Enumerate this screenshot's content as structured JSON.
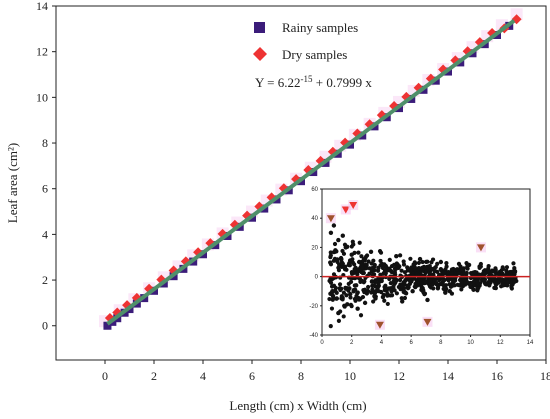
{
  "chart_data": [
    {
      "type": "scatter",
      "xlabel": "Length (cm) x Width (cm)",
      "ylabel": "Leaf area (cm²)",
      "xlim": [
        -2,
        18
      ],
      "ylim": [
        -1.5,
        14
      ],
      "xticks": [
        "0",
        "2",
        "4",
        "6",
        "8",
        "10",
        "12",
        "14",
        "16",
        "18"
      ],
      "yticks": [
        "0",
        "2",
        "4",
        "6",
        "8",
        "10",
        "12",
        "14"
      ],
      "legend": {
        "placement": "top-center"
      },
      "equation": {
        "prefix": "Y = 6.22",
        "exponent": "-15",
        "suffix": " + 0.7999 x"
      },
      "regression": {
        "intercept": 0,
        "slope": 0.7999,
        "color": "#4f8f6a"
      },
      "series": [
        {
          "name": "Rainy samples",
          "color": "#3b1c7a",
          "marker": "square",
          "x": [
            0.1,
            0.3,
            0.5,
            0.8,
            1.0,
            1.3,
            1.6,
            2.0,
            2.4,
            2.8,
            3.2,
            3.6,
            4.0,
            4.5,
            5.0,
            5.5,
            6.0,
            6.5,
            7.0,
            7.5,
            8.0,
            8.5,
            9.0,
            9.5,
            10.0,
            10.5,
            11.0,
            11.5,
            12.0,
            12.5,
            13.0,
            13.5,
            14.0,
            14.5,
            15.0,
            15.5,
            16.0,
            16.5
          ],
          "y": [
            0.0,
            0.17,
            0.33,
            0.57,
            0.73,
            0.97,
            1.21,
            1.53,
            1.85,
            2.17,
            2.49,
            2.81,
            3.13,
            3.53,
            3.93,
            4.33,
            4.73,
            5.13,
            5.53,
            5.93,
            6.33,
            6.73,
            7.13,
            7.53,
            7.93,
            8.33,
            8.73,
            9.13,
            9.53,
            9.93,
            10.33,
            10.73,
            11.13,
            11.53,
            11.93,
            12.33,
            12.73,
            13.13
          ]
        },
        {
          "name": "Dry samples",
          "color": "#ee3333",
          "marker": "diamond",
          "x": [
            0.2,
            0.5,
            0.9,
            1.3,
            1.8,
            2.3,
            2.8,
            3.3,
            3.8,
            4.3,
            4.8,
            5.3,
            5.8,
            6.3,
            6.8,
            7.3,
            7.8,
            8.3,
            8.8,
            9.3,
            9.8,
            10.3,
            10.8,
            11.3,
            11.8,
            12.3,
            12.8,
            13.3,
            13.8,
            14.3,
            14.8,
            15.3,
            15.8,
            16.3,
            16.8
          ],
          "y": [
            0.34,
            0.58,
            0.9,
            1.22,
            1.62,
            2.02,
            2.42,
            2.82,
            3.22,
            3.62,
            4.02,
            4.42,
            4.82,
            5.22,
            5.62,
            6.02,
            6.42,
            6.82,
            7.22,
            7.62,
            8.02,
            8.42,
            8.82,
            9.22,
            9.62,
            10.02,
            10.42,
            10.82,
            11.22,
            11.62,
            12.02,
            12.42,
            12.82,
            13.02,
            13.42
          ]
        }
      ]
    },
    {
      "type": "scatter",
      "xlim": [
        0,
        14
      ],
      "ylim": [
        -40,
        60
      ],
      "xticks": [
        "0",
        "2",
        "4",
        "6",
        "8",
        "10",
        "12",
        "14"
      ],
      "yticks": [
        "-40",
        "-20",
        "0",
        "20",
        "40",
        "60"
      ],
      "reference_line": {
        "y": 0,
        "color": "#cc2222"
      },
      "points": {
        "x": [
          0.6,
          0.9,
          1.1,
          1.3,
          1.6,
          1.8,
          2.0,
          2.2,
          2.5,
          2.7,
          3.0,
          3.2,
          3.5,
          3.8,
          4.0,
          4.3,
          4.6,
          4.9,
          5.2,
          5.5,
          5.8,
          6.1,
          6.4,
          6.7,
          7.0,
          7.3,
          7.6,
          7.9,
          8.2,
          8.5,
          8.8,
          9.1,
          9.4,
          9.7,
          10.0,
          10.3,
          10.6,
          10.9,
          11.2,
          11.5,
          11.8,
          12.1,
          12.4,
          0.7,
          1.0,
          1.2,
          1.5,
          1.9,
          2.3,
          2.9,
          3.4,
          4.1,
          4.8,
          5.6,
          6.3,
          7.1,
          7.8,
          8.6,
          9.3,
          10.2,
          11.0,
          11.9,
          0.8,
          1.4,
          2.1,
          3.3,
          5.0,
          6.6,
          8.0,
          9.9,
          1.1,
          1.7,
          2.4,
          3.6,
          4.4,
          5.4,
          6.9,
          8.3,
          10.5,
          12.2
        ],
        "y": [
          30,
          18,
          25,
          12,
          20,
          8,
          15,
          5,
          10,
          -3,
          8,
          2,
          -6,
          6,
          -2,
          4,
          -8,
          3,
          7,
          -4,
          5,
          -10,
          2,
          -5,
          6,
          -3,
          4,
          1,
          -6,
          3,
          -2,
          5,
          -4,
          2,
          -7,
          3,
          1,
          -3,
          4,
          -1,
          2,
          -2,
          1,
          -10,
          -15,
          -8,
          -20,
          -12,
          -6,
          -18,
          -9,
          -14,
          -7,
          -11,
          -5,
          -16,
          -8,
          -10,
          -6,
          -9,
          -5,
          -4,
          35,
          28,
          22,
          17,
          14,
          12,
          10,
          8,
          -25,
          -19,
          -22,
          -15,
          -13,
          -17,
          -12,
          -11,
          -8,
          -6
        ]
      },
      "outliers": [
        {
          "x": 0.6,
          "y": 40,
          "color": "#a0522d"
        },
        {
          "x": 1.6,
          "y": 46,
          "color": "#ee3333"
        },
        {
          "x": 2.1,
          "y": 49,
          "color": "#ee3333"
        },
        {
          "x": 3.9,
          "y": -33,
          "color": "#a0522d"
        },
        {
          "x": 7.1,
          "y": -31,
          "color": "#a0522d"
        },
        {
          "x": 10.7,
          "y": 20,
          "color": "#a0522d"
        }
      ]
    }
  ]
}
